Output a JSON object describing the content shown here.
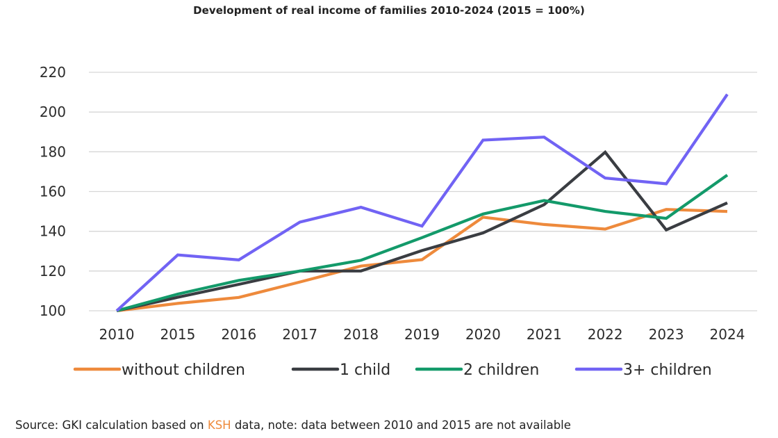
{
  "chart_data": {
    "type": "line",
    "title": "Development of real income of families 2010-2024 (2015 = 100%)",
    "categories": [
      "2010",
      "2015",
      "2016",
      "2017",
      "2018",
      "2019",
      "2020",
      "2021",
      "2022",
      "2023",
      "2024"
    ],
    "ylim": [
      100,
      220
    ],
    "yticks": [
      100,
      120,
      140,
      160,
      180,
      200,
      220
    ],
    "grid": true,
    "legend_position": "bottom",
    "series": [
      {
        "name": "without children",
        "color": "#ee8a3c",
        "values": [
          100,
          103.7,
          106.7,
          114.5,
          122.5,
          125.7,
          147.1,
          143.4,
          141.1,
          151.0,
          150.0
        ]
      },
      {
        "name": "1 child",
        "color": "#3a3d42",
        "values": [
          100,
          106.8,
          113.3,
          120.0,
          120.0,
          130.3,
          139.2,
          153.4,
          179.8,
          140.7,
          154.3
        ]
      },
      {
        "name": "2 children",
        "color": "#139a6a",
        "values": [
          100,
          108.4,
          115.3,
          120.0,
          125.4,
          136.8,
          148.7,
          155.5,
          150.0,
          146.5,
          168.3
        ]
      },
      {
        "name": "3+ children",
        "color": "#7163f4",
        "values": [
          100,
          128.1,
          125.6,
          144.6,
          152.1,
          142.6,
          185.9,
          187.4,
          166.8,
          163.9,
          208.9
        ]
      }
    ]
  },
  "source": {
    "prefix": "Source: GKI calculation based on ",
    "highlight": "KSH",
    "suffix": " data, note: data between 2010 and 2015 are not available",
    "highlight_color": "#ee8a3c"
  }
}
